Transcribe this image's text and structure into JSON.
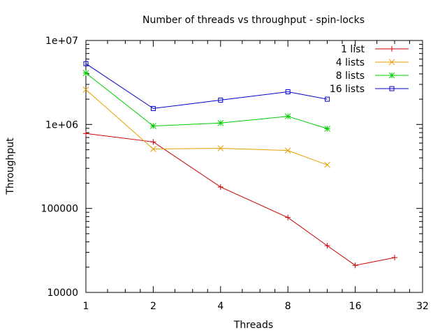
{
  "chart_data": {
    "type": "line",
    "title": "Number of threads vs throughput - spin-locks",
    "xlabel": "Threads",
    "ylabel": "Throughput",
    "x_scale": "log2",
    "y_scale": "log10",
    "xlim": [
      1,
      32
    ],
    "ylim": [
      10000,
      10000000
    ],
    "x_ticks": [
      1,
      2,
      4,
      8,
      16,
      32
    ],
    "x_tick_labels": [
      "1",
      "2",
      "4",
      "8",
      "16",
      "32"
    ],
    "y_ticks": [
      10000,
      100000,
      1000000,
      10000000
    ],
    "y_tick_labels": [
      "10000",
      "100000",
      "1e+06",
      "1e+07"
    ],
    "grid": false,
    "legend_position": "top-right",
    "series": [
      {
        "name": "1 list",
        "color": "#cc0000",
        "marker": "plus",
        "x": [
          1,
          2,
          4,
          8,
          12,
          16,
          24
        ],
        "y": [
          780000,
          620000,
          180000,
          78000,
          36000,
          21000,
          26000
        ]
      },
      {
        "name": "4 lists",
        "color": "#e8a000",
        "marker": "cross",
        "x": [
          1,
          2,
          4,
          8,
          12
        ],
        "y": [
          2600000,
          510000,
          520000,
          490000,
          330000
        ]
      },
      {
        "name": "8 lists",
        "color": "#00cc00",
        "marker": "star",
        "x": [
          1,
          2,
          4,
          8,
          12
        ],
        "y": [
          4100000,
          960000,
          1040000,
          1250000,
          890000
        ]
      },
      {
        "name": "16 lists",
        "color": "#0000cc",
        "marker": "square",
        "x": [
          1,
          2,
          4,
          8,
          12
        ],
        "y": [
          5300000,
          1550000,
          1950000,
          2450000,
          2000000
        ]
      }
    ]
  }
}
